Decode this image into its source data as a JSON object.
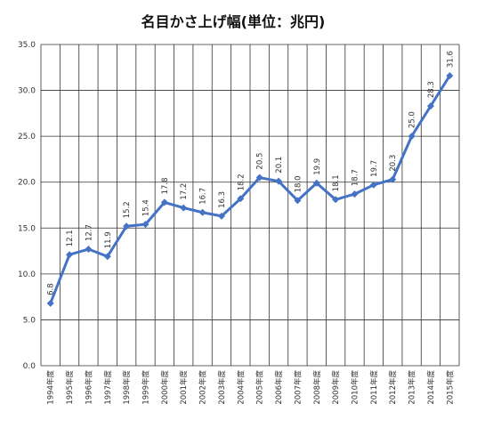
{
  "chart_data": {
    "type": "line",
    "title": "名目かさ上げ幅(単位：兆円)",
    "xlabel": "",
    "ylabel": "",
    "categories": [
      "1994年度",
      "1995年度",
      "1996年度",
      "1997年度",
      "1998年度",
      "1999年度",
      "2000年度",
      "2001年度",
      "2002年度",
      "2003年度",
      "2004年度",
      "2005年度",
      "2006年度",
      "2007年度",
      "2008年度",
      "2009年度",
      "2010年度",
      "2011年度",
      "2012年度",
      "2013年度",
      "2014年度",
      "2015年度"
    ],
    "values": [
      6.8,
      12.1,
      12.7,
      11.9,
      15.2,
      15.4,
      17.8,
      17.2,
      16.7,
      16.3,
      18.2,
      20.5,
      20.1,
      18.0,
      19.9,
      18.1,
      18.7,
      19.7,
      20.3,
      25.0,
      28.3,
      31.6
    ],
    "data_labels": [
      "6.8",
      "12.1",
      "12.7",
      "11.9",
      "15.2",
      "15.4",
      "17.8",
      "17.2",
      "16.7",
      "16.3",
      "18.2",
      "20.5",
      "20.1",
      "18.0",
      "19.9",
      "18.1",
      "18.7",
      "19.7",
      "20.3",
      "25.0",
      "28.3",
      "31.6"
    ],
    "ylim": [
      0,
      35
    ],
    "yticks": [
      "0.0",
      "5.0",
      "10.0",
      "15.0",
      "20.0",
      "25.0",
      "30.0",
      "35.0"
    ],
    "grid": "vertical-and-horizontal",
    "legend": "none",
    "colors": {
      "line": "#4472c4",
      "grid": "#333333",
      "text": "#333333"
    }
  }
}
